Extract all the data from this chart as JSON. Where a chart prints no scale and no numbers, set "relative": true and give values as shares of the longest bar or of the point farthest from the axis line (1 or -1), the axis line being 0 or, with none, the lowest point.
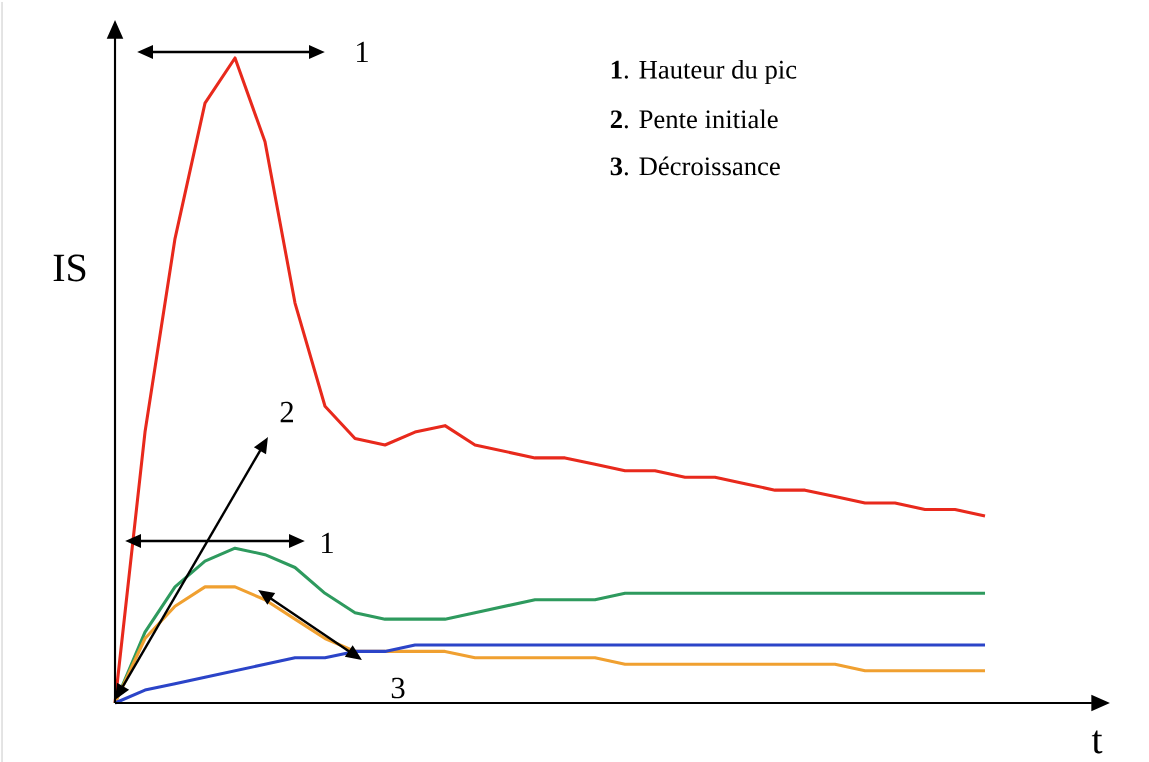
{
  "chart_data": {
    "type": "line",
    "relative": true,
    "xlabel": "t",
    "ylabel": "IS",
    "marker": "none",
    "line_style": "solid",
    "categories": [
      null,
      null,
      null,
      null,
      null,
      null,
      null,
      null,
      null,
      null,
      null,
      null,
      null,
      null,
      null,
      null,
      null,
      null,
      null,
      null,
      null,
      null,
      null,
      null,
      null,
      null,
      null,
      null,
      null,
      null
    ],
    "series": [
      {
        "color": "#e8291c",
        "values": [
          0,
          0.42,
          0.72,
          0.93,
          1,
          0.87,
          0.62,
          0.46,
          0.41,
          0.4,
          0.42,
          0.43,
          0.4,
          0.39,
          0.38,
          0.38,
          0.37,
          0.36,
          0.36,
          0.35,
          0.35,
          0.34,
          0.33,
          0.33,
          0.32,
          0.31,
          0.31,
          0.3,
          0.3,
          0.29
        ]
      },
      {
        "color": "#2e9a5e",
        "values": [
          0,
          0.11,
          0.18,
          0.22,
          0.24,
          0.23,
          0.21,
          0.17,
          0.14,
          0.13,
          0.13,
          0.13,
          0.14,
          0.15,
          0.16,
          0.16,
          0.16,
          0.17,
          0.17,
          0.17,
          0.17,
          0.17,
          0.17,
          0.17,
          0.17,
          0.17,
          0.17,
          0.17,
          0.17,
          0.17
        ]
      },
      {
        "color": "#f0a030",
        "values": [
          0,
          0.1,
          0.15,
          0.18,
          0.18,
          0.16,
          0.13,
          0.1,
          0.08,
          0.08,
          0.08,
          0.08,
          0.07,
          0.07,
          0.07,
          0.07,
          0.07,
          0.06,
          0.06,
          0.06,
          0.06,
          0.06,
          0.06,
          0.06,
          0.06,
          0.05,
          0.05,
          0.05,
          0.05,
          0.05
        ]
      },
      {
        "color": "#2b44c8",
        "values": [
          0,
          0.02,
          0.03,
          0.04,
          0.05,
          0.06,
          0.07,
          0.07,
          0.08,
          0.08,
          0.09,
          0.09,
          0.09,
          0.09,
          0.09,
          0.09,
          0.09,
          0.09,
          0.09,
          0.09,
          0.09,
          0.09,
          0.09,
          0.09,
          0.09,
          0.09,
          0.09,
          0.09,
          0.09,
          0.09
        ]
      }
    ],
    "annotations": [
      "1",
      "2",
      "1",
      "3",
      "**1**. Hauteur du pic",
      "**2**. Pente initiale",
      "**3**. Décroissance"
    ]
  }
}
